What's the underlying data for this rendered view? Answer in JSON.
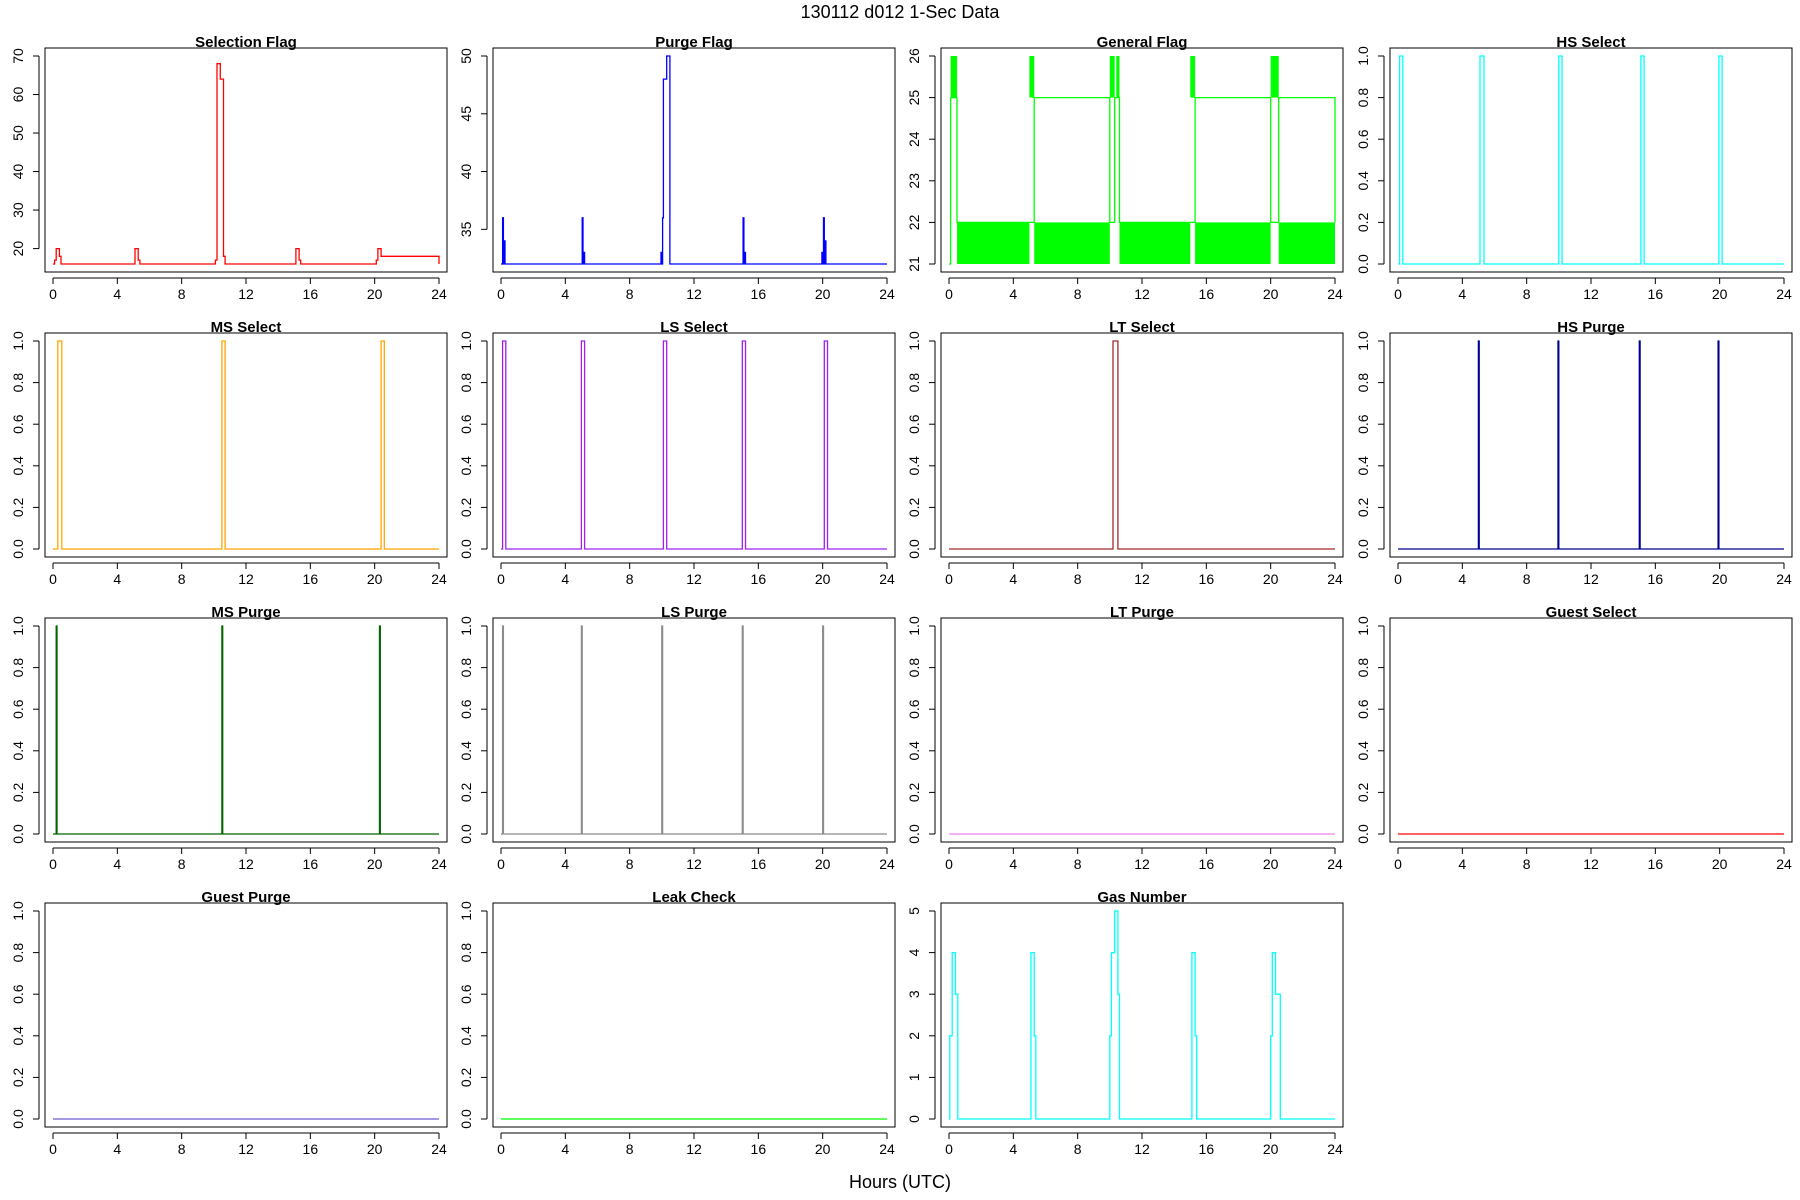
{
  "figure": {
    "title": "130112   d012   1-Sec Data",
    "xlabel": "Hours (UTC)"
  },
  "chart_data": [
    {
      "type": "line",
      "title": "Selection Flag",
      "xlabel": "",
      "ylabel": "",
      "xlim": [
        0,
        24
      ],
      "ylim": [
        16,
        70
      ],
      "xticks": [
        "0",
        "4",
        "8",
        "12",
        "16",
        "20",
        "24"
      ],
      "yticks": [
        "20",
        "30",
        "40",
        "50",
        "60",
        "70"
      ],
      "series": [
        {
          "color": "#ff0000",
          "style": "step",
          "x": [
            0,
            0.1,
            0.2,
            0.3,
            0.4,
            0.5,
            5.0,
            5.1,
            5.2,
            5.3,
            5.4,
            10.0,
            10.1,
            10.2,
            10.3,
            10.4,
            10.5,
            10.6,
            10.7,
            15.0,
            15.1,
            15.2,
            15.3,
            15.4,
            20.0,
            20.1,
            20.2,
            20.3,
            20.4,
            24
          ],
          "y": [
            16,
            17,
            20,
            20,
            18,
            16,
            16,
            20,
            20,
            17,
            16,
            16,
            17,
            68,
            68,
            64,
            64,
            18,
            16,
            16,
            20,
            20,
            17,
            16,
            16,
            17,
            20,
            20,
            18,
            16
          ]
        }
      ]
    },
    {
      "type": "line",
      "title": "Purge Flag",
      "xlabel": "",
      "ylabel": "",
      "xlim": [
        0,
        24
      ],
      "ylim": [
        32,
        50
      ],
      "xticks": [
        "0",
        "4",
        "8",
        "12",
        "16",
        "20",
        "24"
      ],
      "yticks": [
        "35",
        "40",
        "45",
        "50"
      ],
      "series": [
        {
          "color": "#0000ff",
          "style": "step",
          "x": [
            0,
            0.1,
            0.15,
            0.2,
            0.25,
            0.3,
            5.0,
            5.05,
            5.1,
            5.15,
            5.2,
            9.9,
            9.95,
            10.0,
            10.05,
            10.1,
            10.3,
            10.5,
            10.6,
            15.0,
            15.05,
            15.1,
            15.15,
            15.2,
            19.9,
            19.95,
            20.0,
            20.05,
            20.1,
            20.15,
            20.2,
            24
          ],
          "y": [
            32,
            36,
            32,
            34,
            32,
            32,
            32,
            36,
            32,
            33,
            32,
            32,
            33,
            32,
            36,
            48,
            50,
            32,
            32,
            32,
            36,
            32,
            33,
            32,
            32,
            33,
            32,
            36,
            32,
            34,
            32,
            32
          ]
        }
      ]
    },
    {
      "type": "line",
      "title": "General Flag",
      "xlabel": "",
      "ylabel": "",
      "xlim": [
        0,
        24
      ],
      "ylim": [
        21,
        26
      ],
      "xticks": [
        "0",
        "4",
        "8",
        "12",
        "16",
        "20",
        "24"
      ],
      "yticks": [
        "21",
        "22",
        "23",
        "24",
        "25",
        "26"
      ],
      "series": [
        {
          "color": "#00ff00",
          "style": "step",
          "x": [
            0,
            0.1,
            0.5,
            5.0,
            5.3,
            10.0,
            10.3,
            10.6,
            15.0,
            15.3,
            20.0,
            20.5,
            24
          ],
          "y": [
            21,
            25,
            22,
            22,
            25,
            22,
            25,
            22,
            22,
            25,
            22,
            25,
            22
          ]
        }
      ],
      "dense_bands": [
        {
          "from": 0.5,
          "to": 5.0
        },
        {
          "from": 5.3,
          "to": 10.0
        },
        {
          "from": 10.6,
          "to": 15.0
        },
        {
          "from": 15.3,
          "to": 20.0
        },
        {
          "from": 20.5,
          "to": 24
        }
      ],
      "peak_bands": [
        {
          "from": 0.1,
          "to": 0.5
        },
        {
          "from": 5.0,
          "to": 5.3
        },
        {
          "from": 10.0,
          "to": 10.3
        },
        {
          "from": 10.4,
          "to": 10.6
        },
        {
          "from": 15.0,
          "to": 15.3
        },
        {
          "from": 20.0,
          "to": 20.5
        }
      ],
      "band_range_low": [
        21,
        22
      ],
      "band_range_high": [
        25,
        26
      ]
    },
    {
      "type": "line",
      "title": "HS Select",
      "xlabel": "",
      "ylabel": "",
      "xlim": [
        0,
        24
      ],
      "ylim": [
        0,
        1
      ],
      "xticks": [
        "0",
        "4",
        "8",
        "12",
        "16",
        "20",
        "24"
      ],
      "yticks": [
        "0.0",
        "0.2",
        "0.4",
        "0.6",
        "0.8",
        "1.0"
      ],
      "series": [
        {
          "color": "#00ffff",
          "style": "step",
          "x": [
            0,
            0.1,
            0.3,
            5.1,
            5.35,
            10.0,
            10.2,
            15.1,
            15.3,
            19.95,
            20.15,
            24
          ],
          "y": [
            0,
            1,
            0,
            1,
            0,
            1,
            0,
            1,
            0,
            1,
            0,
            0
          ]
        }
      ]
    },
    {
      "type": "line",
      "title": "MS Select",
      "xlabel": "",
      "ylabel": "",
      "xlim": [
        0,
        24
      ],
      "ylim": [
        0,
        1
      ],
      "xticks": [
        "0",
        "4",
        "8",
        "12",
        "16",
        "20",
        "24"
      ],
      "yticks": [
        "0.0",
        "0.2",
        "0.4",
        "0.6",
        "0.8",
        "1.0"
      ],
      "series": [
        {
          "color": "#ffa500",
          "style": "step",
          "x": [
            0,
            0.3,
            0.55,
            10.5,
            10.7,
            20.4,
            20.6,
            24
          ],
          "y": [
            0,
            1,
            0,
            1,
            0,
            1,
            0,
            0
          ]
        }
      ]
    },
    {
      "type": "line",
      "title": "LS Select",
      "xlabel": "",
      "ylabel": "",
      "xlim": [
        0,
        24
      ],
      "ylim": [
        0,
        1
      ],
      "xticks": [
        "0",
        "4",
        "8",
        "12",
        "16",
        "20",
        "24"
      ],
      "yticks": [
        "0.0",
        "0.2",
        "0.4",
        "0.6",
        "0.8",
        "1.0"
      ],
      "series": [
        {
          "color": "#a020f0",
          "style": "step",
          "x": [
            0,
            0.1,
            0.3,
            5.0,
            5.2,
            10.1,
            10.3,
            15.0,
            15.2,
            20.1,
            20.3,
            24
          ],
          "y": [
            0,
            1,
            0,
            1,
            0,
            1,
            0,
            1,
            0,
            1,
            0,
            0
          ]
        }
      ]
    },
    {
      "type": "line",
      "title": "LT Select",
      "xlabel": "",
      "ylabel": "",
      "xlim": [
        0,
        24
      ],
      "ylim": [
        0,
        1
      ],
      "xticks": [
        "0",
        "4",
        "8",
        "12",
        "16",
        "20",
        "24"
      ],
      "yticks": [
        "0.0",
        "0.2",
        "0.4",
        "0.6",
        "0.8",
        "1.0"
      ],
      "series": [
        {
          "color": "#a52a2a",
          "style": "step",
          "x": [
            0,
            10.2,
            10.5,
            24
          ],
          "y": [
            0,
            1,
            0,
            0
          ]
        }
      ]
    },
    {
      "type": "line",
      "title": "HS Purge",
      "xlabel": "",
      "ylabel": "",
      "xlim": [
        0,
        24
      ],
      "ylim": [
        0,
        1
      ],
      "xticks": [
        "0",
        "4",
        "8",
        "12",
        "16",
        "20",
        "24"
      ],
      "yticks": [
        "0.0",
        "0.2",
        "0.4",
        "0.6",
        "0.8",
        "1.0"
      ],
      "series": [
        {
          "color": "#00008b",
          "style": "step",
          "x": [
            0,
            5.0,
            5.05,
            9.95,
            10.0,
            15.0,
            15.05,
            19.9,
            19.95,
            24
          ],
          "y": [
            0,
            1,
            0,
            1,
            0,
            1,
            0,
            1,
            0,
            0
          ]
        }
      ]
    },
    {
      "type": "line",
      "title": "MS Purge",
      "xlabel": "",
      "ylabel": "",
      "xlim": [
        0,
        24
      ],
      "ylim": [
        0,
        1
      ],
      "xticks": [
        "0",
        "4",
        "8",
        "12",
        "16",
        "20",
        "24"
      ],
      "yticks": [
        "0.0",
        "0.2",
        "0.4",
        "0.6",
        "0.8",
        "1.0"
      ],
      "series": [
        {
          "color": "#006400",
          "style": "step",
          "x": [
            0,
            0.2,
            0.25,
            10.5,
            10.55,
            20.3,
            20.35,
            24
          ],
          "y": [
            0,
            1,
            0,
            1,
            0,
            1,
            0,
            0
          ]
        }
      ]
    },
    {
      "type": "line",
      "title": "LS Purge",
      "xlabel": "",
      "ylabel": "",
      "xlim": [
        0,
        24
      ],
      "ylim": [
        0,
        1
      ],
      "xticks": [
        "0",
        "4",
        "8",
        "12",
        "16",
        "20",
        "24"
      ],
      "yticks": [
        "0.0",
        "0.2",
        "0.4",
        "0.6",
        "0.8",
        "1.0"
      ],
      "series": [
        {
          "color": "#8c8c8c",
          "style": "step",
          "x": [
            0,
            0.1,
            0.15,
            5.0,
            5.05,
            10.0,
            10.05,
            15.0,
            15.05,
            20.0,
            20.05,
            24
          ],
          "y": [
            0,
            1,
            0,
            1,
            0,
            1,
            0,
            1,
            0,
            1,
            0,
            0
          ]
        }
      ]
    },
    {
      "type": "line",
      "title": "LT Purge",
      "xlabel": "",
      "ylabel": "",
      "xlim": [
        0,
        24
      ],
      "ylim": [
        0,
        1
      ],
      "xticks": [
        "0",
        "4",
        "8",
        "12",
        "16",
        "20",
        "24"
      ],
      "yticks": [
        "0.0",
        "0.2",
        "0.4",
        "0.6",
        "0.8",
        "1.0"
      ],
      "series": [
        {
          "color": "#ee82ee",
          "style": "step",
          "x": [
            0,
            24
          ],
          "y": [
            0,
            0
          ]
        }
      ]
    },
    {
      "type": "line",
      "title": "Guest Select",
      "xlabel": "",
      "ylabel": "",
      "xlim": [
        0,
        24
      ],
      "ylim": [
        0,
        1
      ],
      "xticks": [
        "0",
        "4",
        "8",
        "12",
        "16",
        "20",
        "24"
      ],
      "yticks": [
        "0.0",
        "0.2",
        "0.4",
        "0.6",
        "0.8",
        "1.0"
      ],
      "series": [
        {
          "color": "#ff0000",
          "style": "step",
          "x": [
            0,
            24
          ],
          "y": [
            0,
            0
          ]
        }
      ]
    },
    {
      "type": "line",
      "title": "Guest Purge",
      "xlabel": "",
      "ylabel": "",
      "xlim": [
        0,
        24
      ],
      "ylim": [
        0,
        1
      ],
      "xticks": [
        "0",
        "4",
        "8",
        "12",
        "16",
        "20",
        "24"
      ],
      "yticks": [
        "0.0",
        "0.2",
        "0.4",
        "0.6",
        "0.8",
        "1.0"
      ],
      "series": [
        {
          "color": "#6a5acd",
          "style": "step",
          "x": [
            0,
            24
          ],
          "y": [
            0,
            0
          ]
        }
      ]
    },
    {
      "type": "line",
      "title": "Leak Check",
      "xlabel": "",
      "ylabel": "",
      "xlim": [
        0,
        24
      ],
      "ylim": [
        0,
        1
      ],
      "xticks": [
        "0",
        "4",
        "8",
        "12",
        "16",
        "20",
        "24"
      ],
      "yticks": [
        "0.0",
        "0.2",
        "0.4",
        "0.6",
        "0.8",
        "1.0"
      ],
      "series": [
        {
          "color": "#00ff00",
          "style": "step",
          "x": [
            0,
            24
          ],
          "y": [
            0,
            0
          ]
        }
      ]
    },
    {
      "type": "line",
      "title": "Gas Number",
      "xlabel": "",
      "ylabel": "",
      "xlim": [
        0,
        24
      ],
      "ylim": [
        0,
        5
      ],
      "xticks": [
        "0",
        "4",
        "8",
        "12",
        "16",
        "20",
        "24"
      ],
      "yticks": [
        "0",
        "1",
        "2",
        "3",
        "4",
        "5"
      ],
      "series": [
        {
          "color": "#00ffff",
          "style": "step",
          "x": [
            0,
            0.05,
            0.2,
            0.4,
            0.55,
            5.0,
            5.1,
            5.3,
            5.4,
            10.0,
            10.1,
            10.3,
            10.5,
            10.6,
            15.0,
            15.1,
            15.3,
            15.4,
            20.0,
            20.1,
            20.3,
            20.6,
            24
          ],
          "y": [
            0,
            2,
            4,
            3,
            0,
            0,
            4,
            2,
            0,
            2,
            4,
            5,
            3,
            0,
            0,
            4,
            2,
            0,
            2,
            4,
            3,
            0,
            0
          ]
        }
      ]
    }
  ]
}
